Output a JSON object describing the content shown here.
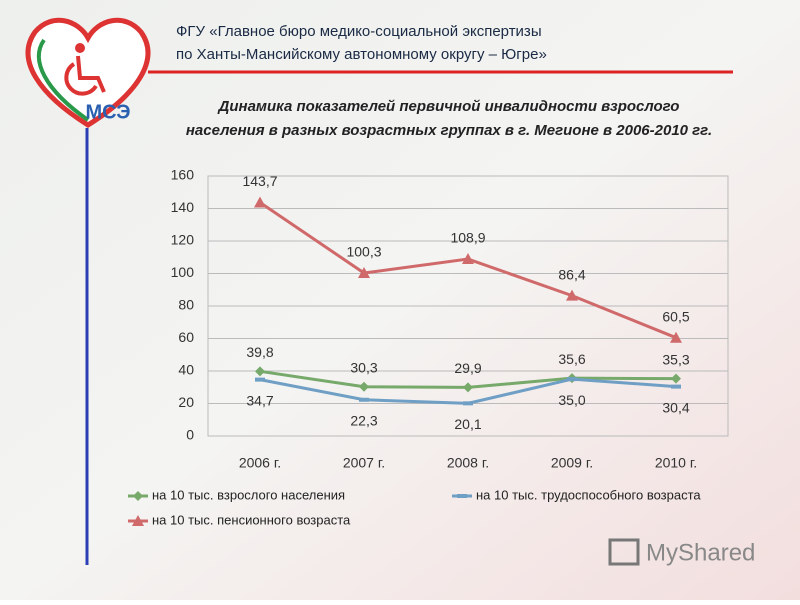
{
  "header": {
    "lines": [
      "ФГУ «Главное бюро медико-социальной экспертизы",
      "по Ханты-Мансийскому автономному округу – Югре»"
    ]
  },
  "logo": "МСЭ",
  "watermark": "MyShared",
  "chart_data": {
    "type": "line",
    "title": [
      "Динамика показателей первичной инвалидности взрослого",
      "населения в разных возрастных группах в г. Мегионе в 2006-2010 гг."
    ],
    "categories": [
      "2006 г.",
      "2007 г.",
      "2008 г.",
      "2009 г.",
      "2010 г."
    ],
    "series": [
      {
        "name": "на 10 тыс. взрослого населения",
        "color": "#77a96b",
        "marker": "diamond",
        "values": [
          39.8,
          30.3,
          29.9,
          35.6,
          35.3
        ],
        "value_labels": [
          "39,8",
          "30,3",
          "29,9",
          "35,6",
          "35,3"
        ]
      },
      {
        "name": "на 10 тыс. трудоспособного возраста",
        "color": "#6f9fc4",
        "marker": "dash",
        "values": [
          34.7,
          22.3,
          20.1,
          35.0,
          30.4
        ],
        "value_labels": [
          "34,7",
          "22,3",
          "20,1",
          "35,0",
          "30,4"
        ]
      },
      {
        "name": "на 10 тыс. пенсионного возраста",
        "color": "#d0696a",
        "marker": "triangle",
        "values": [
          143.7,
          100.3,
          108.9,
          86.4,
          60.5
        ],
        "value_labels": [
          "143,7",
          "100,3",
          "108,9",
          "86,4",
          "60,5"
        ]
      }
    ],
    "ylim": [
      0,
      160
    ],
    "yticks": [
      0,
      20,
      40,
      60,
      80,
      100,
      120,
      140,
      160
    ],
    "grid": true
  }
}
